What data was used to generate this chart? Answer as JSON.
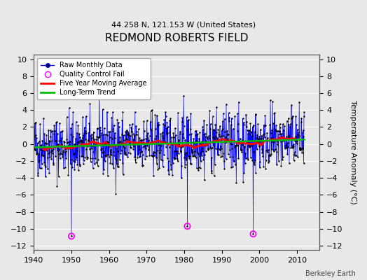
{
  "title": "REDMOND ROBERTS FIELD",
  "subtitle": "44.258 N, 121.153 W (United States)",
  "ylabel": "Temperature Anomaly (°C)",
  "xlabel_bottom": "Berkeley Earth",
  "ylim": [
    -12.5,
    10.5
  ],
  "yticks": [
    -12,
    -10,
    -8,
    -6,
    -4,
    -2,
    0,
    2,
    4,
    6,
    8,
    10
  ],
  "xlim": [
    1940,
    2016
  ],
  "xticks": [
    1940,
    1950,
    1960,
    1970,
    1980,
    1990,
    2000,
    2010
  ],
  "background_color": "#e8e8e8",
  "plot_bg_color": "#e8e8e8",
  "raw_line_color": "#0000ff",
  "raw_marker_color": "#000000",
  "qc_fail_color": "#ff00ff",
  "moving_avg_color": "#ff0000",
  "trend_color": "#00bb00",
  "seed": 42,
  "n_years": 72,
  "start_year": 1940,
  "qc_fail_indices": [
    120,
    490,
    700
  ]
}
